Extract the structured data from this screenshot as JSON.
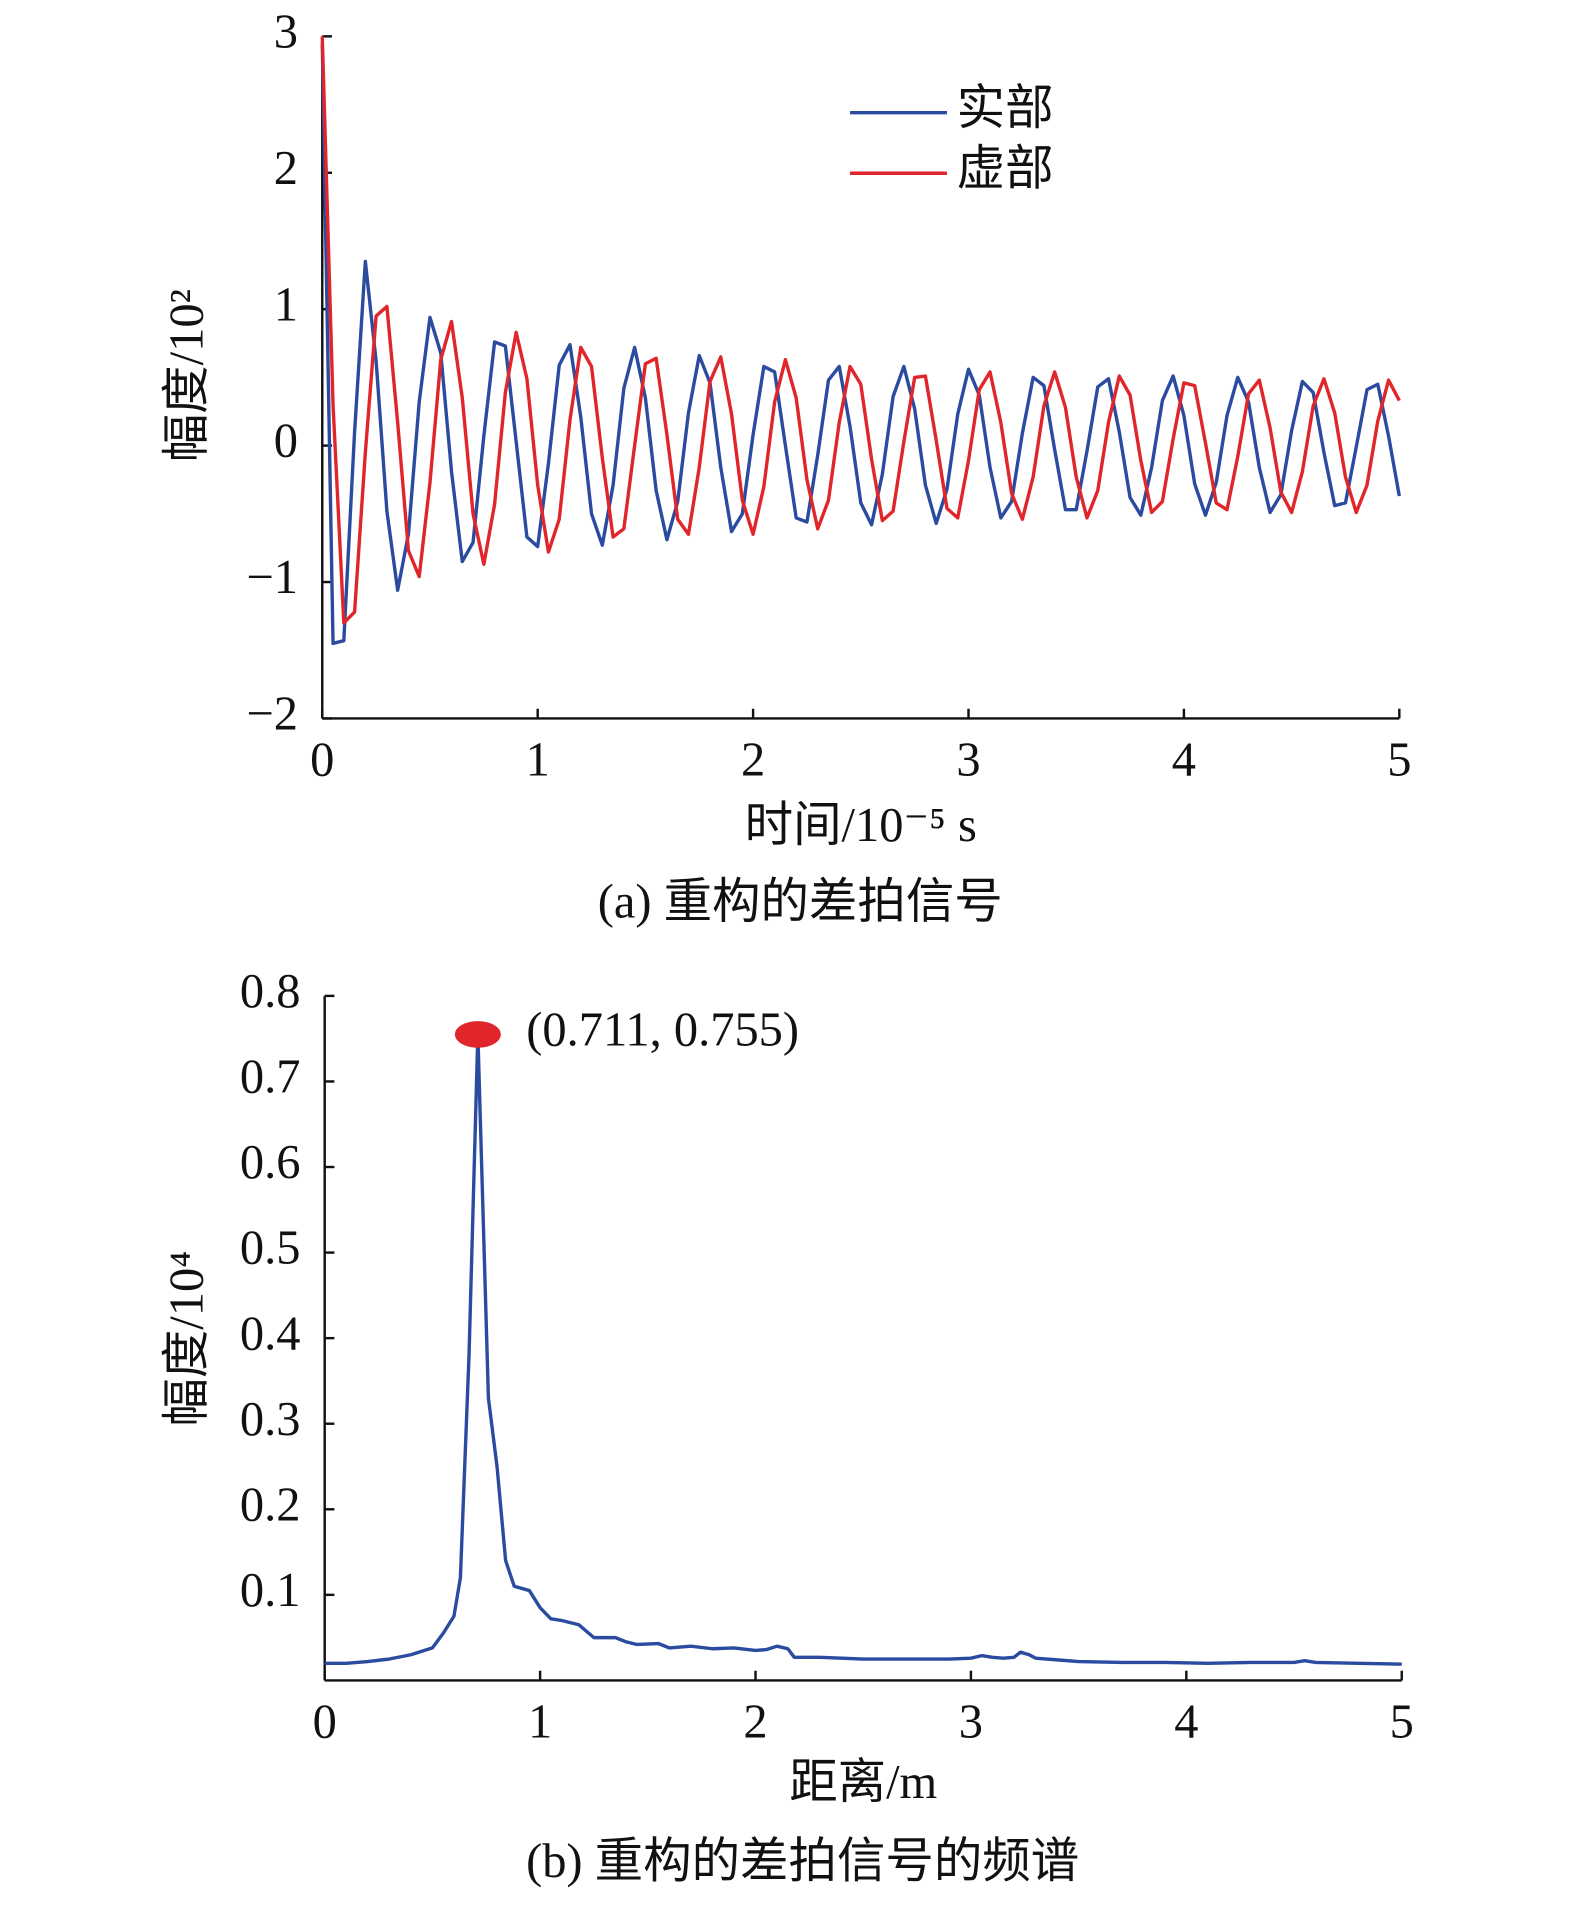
{
  "chart_data": [
    {
      "type": "line",
      "caption": "(a) 重构的差拍信号",
      "xlabel": "时间/10⁻⁵ s",
      "ylabel": "幅度/10²",
      "x": [
        0,
        0.05,
        0.1,
        0.15,
        0.2,
        0.25,
        0.3,
        0.35,
        0.4,
        0.45,
        0.5,
        0.55,
        0.6,
        0.65,
        0.7,
        0.75,
        0.8,
        0.85,
        0.9,
        0.95,
        1,
        1.05,
        1.1,
        1.15,
        1.2,
        1.25,
        1.3,
        1.35,
        1.4,
        1.45,
        1.5,
        1.55,
        1.6,
        1.65,
        1.7,
        1.75,
        1.8,
        1.85,
        1.9,
        1.95,
        2,
        2.05,
        2.1,
        2.15,
        2.2,
        2.25,
        2.3,
        2.35,
        2.4,
        2.45,
        2.5,
        2.55,
        2.6,
        2.65,
        2.7,
        2.75,
        2.8,
        2.85,
        2.9,
        2.95,
        3,
        3.05,
        3.1,
        3.15,
        3.2,
        3.25,
        3.3,
        3.35,
        3.4,
        3.45,
        3.5,
        3.55,
        3.6,
        3.65,
        3.7,
        3.75,
        3.8,
        3.85,
        3.9,
        3.95,
        4,
        4.05,
        4.1,
        4.15,
        4.2,
        4.25,
        4.3,
        4.35,
        4.4,
        4.45,
        4.5,
        4.55,
        4.6,
        4.65,
        4.7,
        4.75,
        4.8,
        4.85,
        4.9,
        4.95,
        5
      ],
      "series": [
        {
          "name": "实部",
          "color": "#2b4ba0",
          "values": [
            2.95,
            -1.45,
            -1.43,
            0.1,
            1.35,
            0.62,
            -0.48,
            -1.06,
            -0.65,
            0.32,
            0.94,
            0.68,
            -0.19,
            -0.85,
            -0.71,
            0.07,
            0.76,
            0.73,
            0.03,
            -0.67,
            -0.74,
            -0.13,
            0.59,
            0.74,
            0.21,
            -0.5,
            -0.73,
            -0.29,
            0.42,
            0.72,
            0.35,
            -0.33,
            -0.69,
            -0.41,
            0.24,
            0.66,
            0.46,
            -0.16,
            -0.63,
            -0.5,
            0.08,
            0.58,
            0.54,
            0,
            -0.53,
            -0.56,
            -0.07,
            0.48,
            0.58,
            0.14,
            -0.42,
            -0.58,
            -0.21,
            0.36,
            0.58,
            0.27,
            -0.29,
            -0.57,
            -0.32,
            0.23,
            0.56,
            0.37,
            -0.16,
            -0.53,
            -0.41,
            0.09,
            0.5,
            0.44,
            -0.03,
            -0.47,
            -0.47,
            -0.04,
            0.43,
            0.49,
            0.1,
            -0.38,
            -0.51,
            -0.16,
            0.33,
            0.51,
            0.22,
            -0.28,
            -0.51,
            -0.27,
            0.22,
            0.5,
            0.32,
            -0.16,
            -0.49,
            -0.36,
            0.11,
            0.47,
            0.39,
            -0.05,
            -0.44,
            -0.42,
            -0.01,
            0.41,
            0.45,
            0.07,
            -0.37
          ]
        },
        {
          "name": "虚部",
          "color": "#e0262b",
          "values": [
            3.0,
            0.3,
            -1.3,
            -1.22,
            -0.05,
            0.95,
            1.02,
            0.17,
            -0.77,
            -0.96,
            -0.27,
            0.63,
            0.91,
            0.35,
            -0.5,
            -0.87,
            -0.43,
            0.39,
            0.83,
            0.49,
            -0.29,
            -0.78,
            -0.54,
            0.19,
            0.72,
            0.58,
            -0.09,
            -0.67,
            -0.61,
            0,
            0.6,
            0.64,
            0.08,
            -0.54,
            -0.65,
            -0.16,
            0.47,
            0.65,
            0.23,
            -0.4,
            -0.65,
            -0.3,
            0.32,
            0.63,
            0.35,
            -0.25,
            -0.61,
            -0.4,
            0.17,
            0.58,
            0.45,
            -0.1,
            -0.55,
            -0.48,
            0.03,
            0.5,
            0.51,
            0.04,
            -0.46,
            -0.53,
            -0.11,
            0.41,
            0.54,
            0.17,
            -0.35,
            -0.54,
            -0.23,
            0.29,
            0.54,
            0.28,
            -0.23,
            -0.53,
            -0.33,
            0.17,
            0.51,
            0.37,
            -0.11,
            -0.49,
            -0.41,
            0.05,
            0.46,
            0.44,
            0.02,
            -0.42,
            -0.47,
            -0.08,
            0.38,
            0.48,
            0.13,
            -0.34,
            -0.49,
            -0.19,
            0.29,
            0.49,
            0.24,
            -0.23,
            -0.49,
            -0.29,
            0.18,
            0.48,
            0.33
          ]
        }
      ],
      "xlim": [
        0,
        5
      ],
      "ylim": [
        -2,
        3
      ],
      "xticks": [
        0,
        1,
        2,
        3,
        4,
        5
      ],
      "yticks": [
        {
          "value": -2,
          "label": "−2"
        },
        {
          "value": -1,
          "label": "−1"
        },
        0,
        1,
        2,
        3
      ],
      "legend": "upper right"
    },
    {
      "type": "line",
      "caption": "(b) 重构的差拍信号的频谱",
      "xlabel": "距离/m",
      "ylabel": "幅度/10⁴",
      "x": [
        0,
        0.1,
        0.2,
        0.3,
        0.4,
        0.5,
        0.55,
        0.6,
        0.63,
        0.67,
        0.711,
        0.76,
        0.8,
        0.84,
        0.88,
        0.95,
        1.0,
        1.05,
        1.1,
        1.18,
        1.25,
        1.35,
        1.4,
        1.45,
        1.55,
        1.6,
        1.7,
        1.8,
        1.9,
        2.0,
        2.05,
        2.1,
        2.15,
        2.18,
        2.3,
        2.5,
        2.7,
        2.9,
        3.0,
        3.05,
        3.1,
        3.15,
        3.2,
        3.23,
        3.27,
        3.3,
        3.4,
        3.5,
        3.7,
        3.9,
        4.1,
        4.3,
        4.5,
        4.55,
        4.6,
        4.8,
        5.0
      ],
      "series": [
        {
          "color": "#2b4ba0",
          "values": [
            0.02,
            0.02,
            0.022,
            0.025,
            0.03,
            0.038,
            0.055,
            0.075,
            0.12,
            0.38,
            0.755,
            0.33,
            0.25,
            0.14,
            0.11,
            0.105,
            0.085,
            0.072,
            0.07,
            0.065,
            0.05,
            0.05,
            0.045,
            0.042,
            0.043,
            0.038,
            0.04,
            0.037,
            0.038,
            0.035,
            0.036,
            0.04,
            0.037,
            0.027,
            0.027,
            0.025,
            0.025,
            0.025,
            0.026,
            0.029,
            0.027,
            0.026,
            0.027,
            0.033,
            0.03,
            0.026,
            0.024,
            0.022,
            0.021,
            0.021,
            0.02,
            0.021,
            0.021,
            0.023,
            0.021,
            0.02,
            0.019
          ]
        }
      ],
      "xlim": [
        0,
        5
      ],
      "ylim": [
        0,
        0.8
      ],
      "xticks": [
        0,
        1,
        2,
        3,
        4,
        5
      ],
      "yticks": [
        0.1,
        0.2,
        0.3,
        0.4,
        0.5,
        0.6,
        0.7,
        0.8
      ],
      "annotation": {
        "text": "(0.711, 0.755)",
        "x": 0.711,
        "y": 0.755,
        "color": "#e0262b"
      }
    }
  ]
}
